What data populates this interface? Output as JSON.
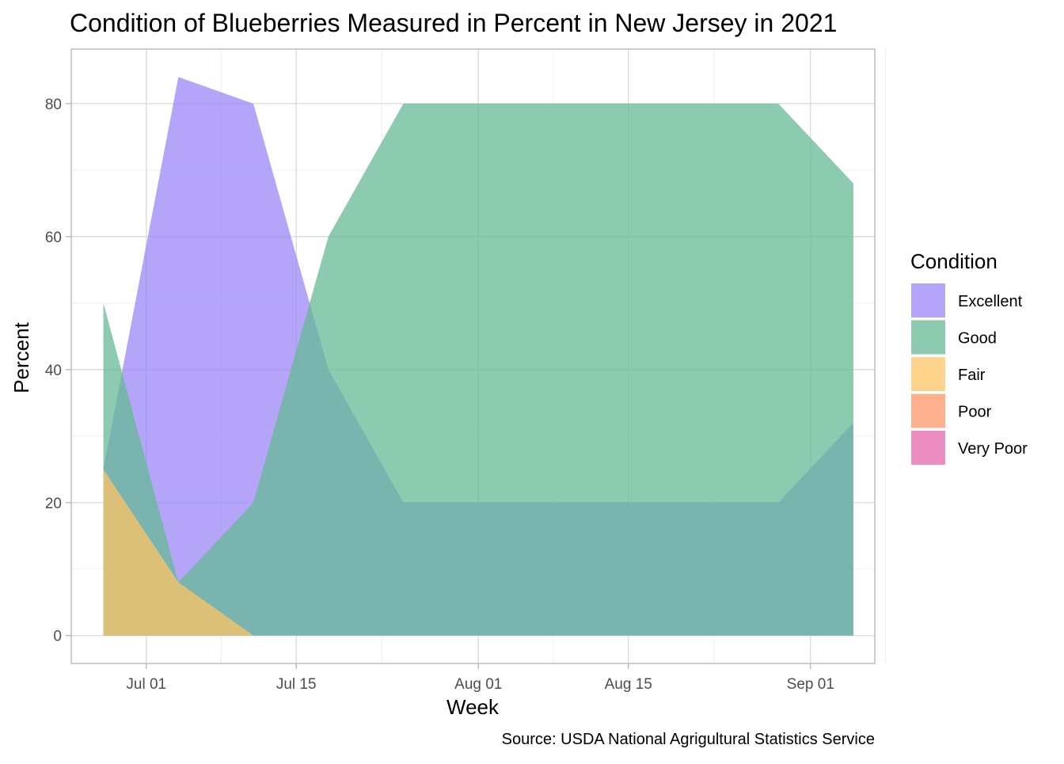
{
  "chart_data": {
    "type": "area",
    "title": "Condition of Blueberries Measured in Percent in New Jersey in 2021",
    "xlabel": "Week",
    "ylabel": "Percent",
    "caption": "Source: USDA National Agrigultural Statistics Service",
    "x_type": "date",
    "xlim": [
      "2021-06-24",
      "2021-09-07"
    ],
    "ylim": [
      -4.2,
      88.2
    ],
    "x_ticks": [
      {
        "date": "2021-07-01",
        "label": "Jul 01"
      },
      {
        "date": "2021-07-15",
        "label": "Jul 15"
      },
      {
        "date": "2021-08-01",
        "label": "Aug 01"
      },
      {
        "date": "2021-08-15",
        "label": "Aug 15"
      },
      {
        "date": "2021-09-01",
        "label": "Sep 01"
      }
    ],
    "x_minor_ticks": [
      "2021-06-24",
      "2021-07-08",
      "2021-07-23",
      "2021-08-08",
      "2021-08-23",
      "2021-09-08"
    ],
    "y_ticks": [
      0,
      20,
      40,
      60,
      80
    ],
    "y_minor_ticks": [
      10,
      30,
      50,
      70
    ],
    "grid": true,
    "legend": {
      "title": "Condition",
      "position": "right"
    },
    "series": [
      {
        "name": "Excellent",
        "color": "#9b87f5",
        "x": [
          "2021-06-27",
          "2021-07-04",
          "2021-07-11",
          "2021-07-18",
          "2021-07-25",
          "2021-08-01",
          "2021-08-08",
          "2021-08-15",
          "2021-08-22",
          "2021-08-29",
          "2021-09-05"
        ],
        "values": [
          25,
          84,
          80,
          40,
          20,
          20,
          20,
          20,
          20,
          20,
          32
        ]
      },
      {
        "name": "Good",
        "color": "#66b996",
        "x": [
          "2021-06-27",
          "2021-07-04",
          "2021-07-11",
          "2021-07-18",
          "2021-07-25",
          "2021-08-01",
          "2021-08-08",
          "2021-08-15",
          "2021-08-22",
          "2021-08-29",
          "2021-09-05"
        ],
        "values": [
          50,
          8,
          20,
          60,
          80,
          80,
          80,
          80,
          80,
          80,
          68
        ]
      },
      {
        "name": "Fair",
        "color": "#fdc466",
        "x": [
          "2021-06-27",
          "2021-07-04",
          "2021-07-11",
          "2021-07-18",
          "2021-07-25",
          "2021-08-01",
          "2021-08-08",
          "2021-08-15",
          "2021-08-22",
          "2021-08-29",
          "2021-09-05"
        ],
        "values": [
          25,
          8,
          0,
          0,
          0,
          0,
          0,
          0,
          0,
          0,
          0
        ]
      },
      {
        "name": "Poor",
        "color": "#fb9567",
        "x": [
          "2021-06-27",
          "2021-07-04",
          "2021-07-11",
          "2021-07-18",
          "2021-07-25",
          "2021-08-01",
          "2021-08-08",
          "2021-08-15",
          "2021-08-22",
          "2021-08-29",
          "2021-09-05"
        ],
        "values": [
          0,
          0,
          0,
          0,
          0,
          0,
          0,
          0,
          0,
          0,
          0
        ]
      },
      {
        "name": "Very Poor",
        "color": "#e467a9",
        "x": [
          "2021-06-27",
          "2021-07-04",
          "2021-07-11",
          "2021-07-18",
          "2021-07-25",
          "2021-08-01",
          "2021-08-08",
          "2021-08-15",
          "2021-08-22",
          "2021-08-29",
          "2021-09-05"
        ],
        "values": [
          0,
          0,
          0,
          0,
          0,
          0,
          0,
          0,
          0,
          0,
          0
        ]
      }
    ],
    "fill_opacity": 0.75,
    "colors": {
      "grid_major": "#d9d9d9",
      "grid_minor": "#ededed",
      "panel_border": "#b3b3b3",
      "tick_text": "#4d4d4d"
    }
  }
}
